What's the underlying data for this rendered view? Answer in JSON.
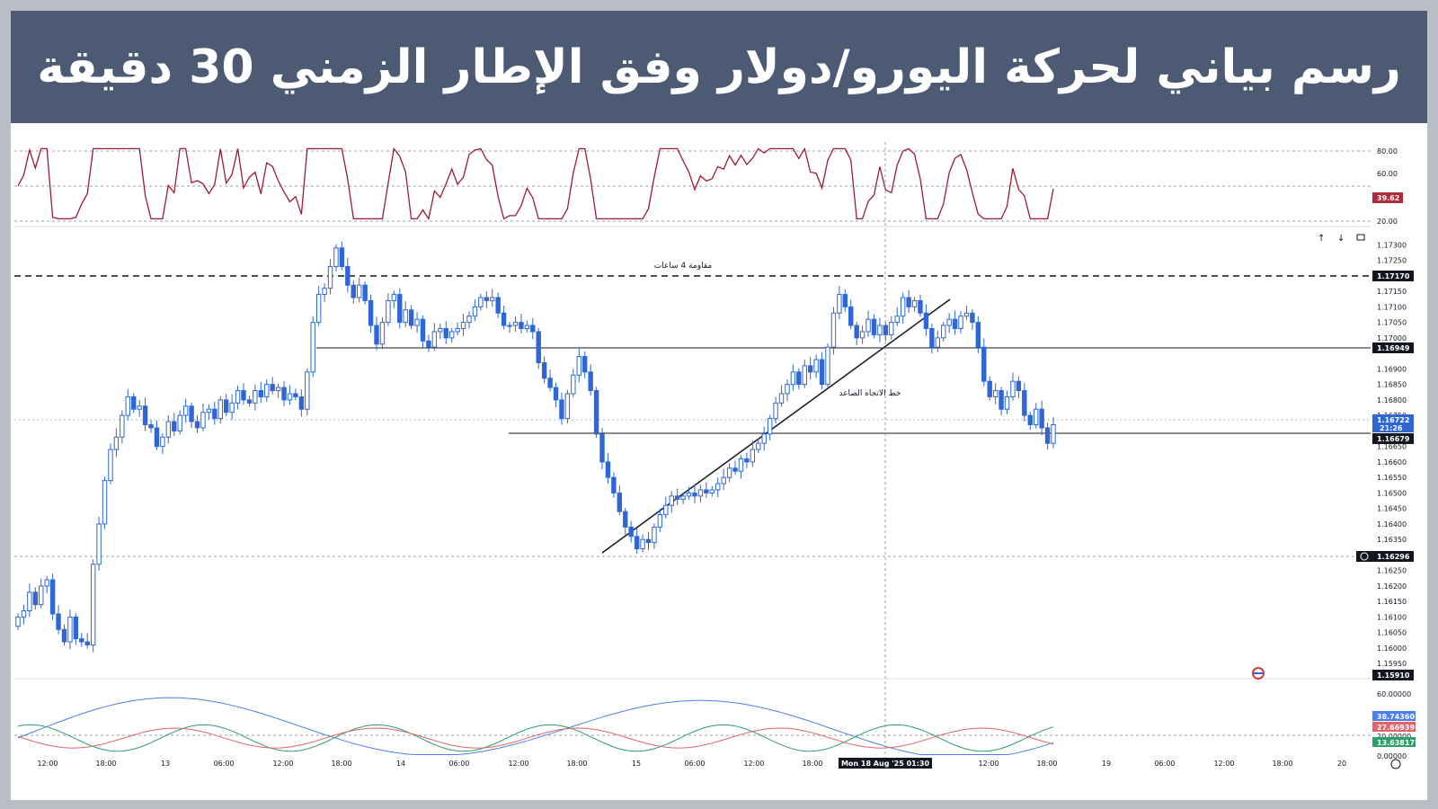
{
  "banner": {
    "title": "رسم بياني لحركة اليورو/دولار وفق الإطار الزمني 30 دقيقة"
  },
  "colors": {
    "up": "#2e66d6",
    "down": "#2e66d6",
    "rsi": "#9c1b31",
    "lineA": "#4d7ef0",
    "lineB": "#2e9e6a",
    "lineC": "#e0656b"
  },
  "rsi_panel": {
    "axis_ticks": [
      "80.00",
      "60.00",
      "20.00"
    ],
    "level_lines": [
      80,
      50,
      20
    ],
    "last_value": "39.62"
  },
  "price_panel": {
    "axis_ticks": [
      "1.17300",
      "1.17250",
      "1.17200",
      "1.17150",
      "1.17100",
      "1.17050",
      "1.17000",
      "1.16900",
      "1.16850",
      "1.16800",
      "1.16750",
      "1.16650",
      "1.16600",
      "1.16550",
      "1.16500",
      "1.16450",
      "1.16400",
      "1.16350",
      "1.16250",
      "1.16200",
      "1.16150",
      "1.16100",
      "1.16050",
      "1.16000",
      "1.15950"
    ],
    "tags": {
      "resistance": "1.17170",
      "level_mid": "1.16949",
      "current": "1.16722",
      "countdown": "21:26",
      "level_low": "1.16679",
      "crosshair_price": "1.16296",
      "bottom_box": "1.15910"
    },
    "annotations": {
      "resistance_label": "مقاومة 4 ساعات",
      "trend_label": "خط الاتجاه الصاعد"
    }
  },
  "indicator_panel": {
    "axis_ticks": [
      "60.00000",
      "20.00000",
      "0.00000"
    ],
    "tags": [
      "38.74360",
      "27.66939",
      "13.63817"
    ]
  },
  "x_axis": {
    "labels": [
      "12:00",
      "18:00",
      "13",
      "06:00",
      "12:00",
      "18:00",
      "14",
      "06:00",
      "12:00",
      "18:00",
      "15",
      "06:00",
      "12:00",
      "18:00",
      "Mon 18 Aug '25   01:30",
      "12:00",
      "18:00",
      "19",
      "06:00",
      "12:00",
      "18:00",
      "20"
    ]
  },
  "chart_data": {
    "type": "candlestick",
    "title": "رسم بياني لحركة اليورو/دولار وفق الإطار الزمني 30 دقيقة",
    "xlabel": "",
    "ylabel": "",
    "ylim": [
      1.1591,
      1.1733
    ],
    "x_ticks": [
      "12:00",
      "18:00",
      "13",
      "06:00",
      "12:00",
      "18:00",
      "14",
      "06:00",
      "12:00",
      "18:00",
      "15",
      "06:00",
      "12:00",
      "18:00",
      "12:00",
      "18:00",
      "19",
      "06:00",
      "12:00",
      "18:00",
      "20"
    ],
    "close": [
      1.161,
      1.1612,
      1.1618,
      1.1614,
      1.162,
      1.1622,
      1.1611,
      1.1606,
      1.1602,
      1.161,
      1.1603,
      1.1602,
      1.1601,
      1.1627,
      1.164,
      1.1654,
      1.1664,
      1.1668,
      1.1675,
      1.1681,
      1.1677,
      1.1678,
      1.1672,
      1.1671,
      1.1665,
      1.1668,
      1.1673,
      1.167,
      1.1675,
      1.1678,
      1.1673,
      1.1671,
      1.1676,
      1.1677,
      1.1674,
      1.168,
      1.1676,
      1.1679,
      1.1683,
      1.168,
      1.1679,
      1.1683,
      1.1681,
      1.1685,
      1.1683,
      1.1684,
      1.168,
      1.1682,
      1.1681,
      1.1677,
      1.1689,
      1.1705,
      1.1714,
      1.1716,
      1.1723,
      1.1729,
      1.1723,
      1.1717,
      1.1713,
      1.1717,
      1.1712,
      1.1704,
      1.1698,
      1.1705,
      1.1712,
      1.1714,
      1.1705,
      1.1709,
      1.1704,
      1.1706,
      1.1699,
      1.1697,
      1.1702,
      1.1703,
      1.17,
      1.1702,
      1.1703,
      1.1705,
      1.1707,
      1.171,
      1.1713,
      1.1712,
      1.1713,
      1.1708,
      1.1704,
      1.1704,
      1.1705,
      1.1703,
      1.1704,
      1.1702,
      1.1692,
      1.1687,
      1.1684,
      1.168,
      1.1674,
      1.1682,
      1.1688,
      1.1694,
      1.1689,
      1.1683,
      1.1669,
      1.166,
      1.1655,
      1.165,
      1.1644,
      1.1639,
      1.1636,
      1.1632,
      1.1635,
      1.1634,
      1.1639,
      1.1643,
      1.1646,
      1.1649,
      1.1648,
      1.1649,
      1.165,
      1.1649,
      1.1651,
      1.165,
      1.1651,
      1.1653,
      1.1655,
      1.1658,
      1.1657,
      1.1661,
      1.166,
      1.1664,
      1.1666,
      1.1669,
      1.1674,
      1.1679,
      1.1682,
      1.1685,
      1.1689,
      1.1685,
      1.1691,
      1.1689,
      1.1693,
      1.1685,
      1.1697,
      1.1708,
      1.1714,
      1.171,
      1.1704,
      1.17,
      1.1702,
      1.1706,
      1.1701,
      1.1704,
      1.1701,
      1.1705,
      1.1707,
      1.1713,
      1.171,
      1.1712,
      1.1708,
      1.1703,
      1.1697,
      1.17,
      1.1704,
      1.1706,
      1.1703,
      1.1707,
      1.1708,
      1.1705,
      1.1697,
      1.1686,
      1.1681,
      1.1683,
      1.1677,
      1.1681,
      1.1686,
      1.1683,
      1.1675,
      1.1672,
      1.1677,
      1.1671,
      1.1666,
      1.1672
    ]
  }
}
